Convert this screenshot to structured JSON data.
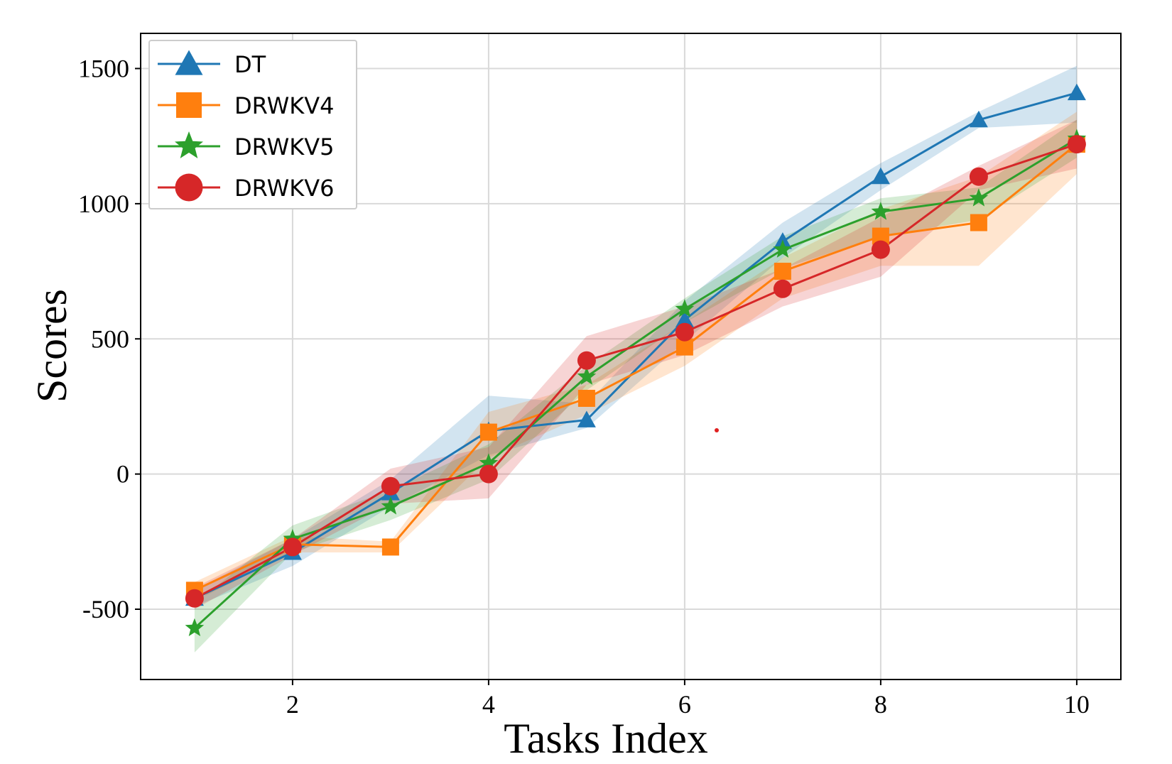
{
  "chart_data": {
    "type": "line",
    "title": "",
    "xlabel": "Tasks Index",
    "ylabel": "Scores",
    "x": [
      1,
      2,
      3,
      4,
      5,
      6,
      7,
      8,
      9,
      10
    ],
    "xlim": [
      0.45,
      10.45
    ],
    "ylim": [
      -760,
      1630
    ],
    "xticks": [
      2,
      4,
      6,
      8,
      10
    ],
    "xtick_labels": [
      "2",
      "4",
      "6",
      "8",
      "10"
    ],
    "yticks": [
      -500,
      0,
      500,
      1000,
      1500
    ],
    "ytick_labels": [
      "-500",
      "0",
      "500",
      "1000",
      "1500"
    ],
    "grid": true,
    "legend_position": "top-left",
    "series": [
      {
        "name": "DT",
        "color": "#1f77b4",
        "marker": "triangle",
        "values": [
          -460,
          -290,
          -70,
          160,
          200,
          570,
          860,
          1100,
          1310,
          1410
        ],
        "lower": [
          -490,
          -340,
          -120,
          70,
          170,
          490,
          800,
          1050,
          1280,
          1300
        ],
        "upper": [
          -430,
          -240,
          -20,
          290,
          260,
          640,
          930,
          1150,
          1340,
          1510
        ]
      },
      {
        "name": "DRWKV4",
        "color": "#ff7f0e",
        "marker": "square",
        "values": [
          -430,
          -260,
          -270,
          155,
          280,
          470,
          750,
          880,
          930,
          1220
        ],
        "lower": [
          -470,
          -290,
          -290,
          60,
          220,
          400,
          650,
          770,
          770,
          1110
        ],
        "upper": [
          -400,
          -230,
          -250,
          230,
          330,
          560,
          800,
          980,
          1100,
          1340
        ]
      },
      {
        "name": "DRWKV5",
        "color": "#2ca02c",
        "marker": "star",
        "values": [
          -570,
          -240,
          -120,
          40,
          360,
          610,
          830,
          970,
          1020,
          1240
        ],
        "lower": [
          -660,
          -290,
          -170,
          -20,
          310,
          560,
          760,
          880,
          940,
          1170
        ],
        "upper": [
          -480,
          -190,
          -60,
          110,
          400,
          650,
          880,
          1020,
          1060,
          1310
        ]
      },
      {
        "name": "DRWKV6",
        "color": "#d62728",
        "marker": "circle",
        "values": [
          -460,
          -270,
          -45,
          0,
          420,
          525,
          685,
          830,
          1100,
          1220
        ],
        "lower": [
          -500,
          -300,
          -110,
          -90,
          330,
          440,
          620,
          730,
          1050,
          1130
        ],
        "upper": [
          -420,
          -240,
          20,
          100,
          510,
          620,
          760,
          950,
          1140,
          1310
        ]
      }
    ],
    "annotations": []
  }
}
